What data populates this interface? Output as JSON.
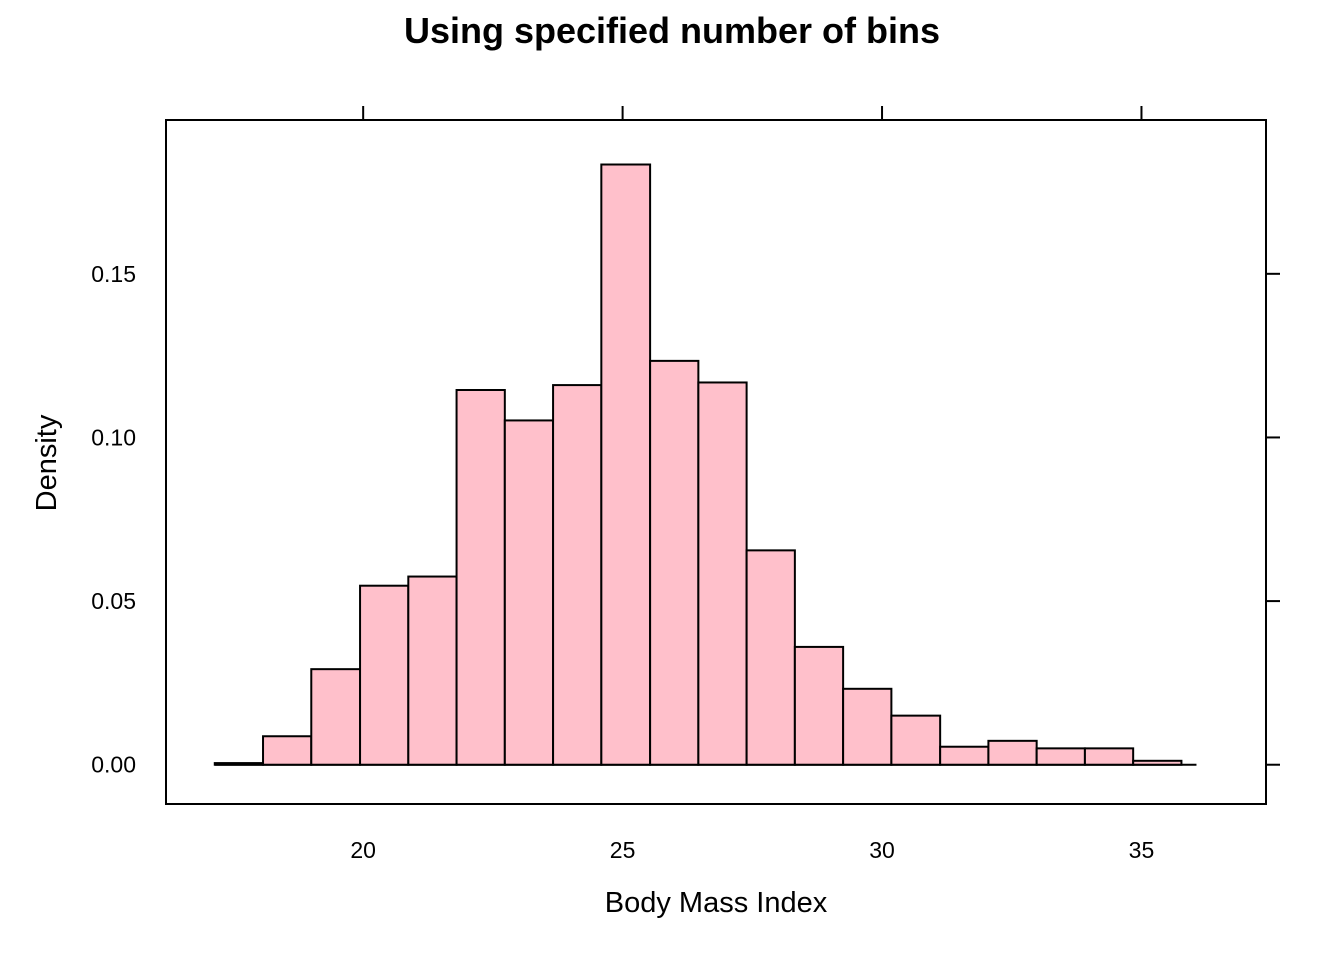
{
  "chart_data": {
    "type": "bar",
    "title": "Using specified number of bins",
    "xlabel": "Body Mass Index",
    "ylabel": "Density",
    "x_ticks": [
      20,
      25,
      30,
      35
    ],
    "y_ticks": [
      "0.00",
      "0.05",
      "0.10",
      "0.15"
    ],
    "x_range": [
      16.2,
      37.4
    ],
    "y_range": [
      -0.012,
      0.197
    ],
    "bar_color": "#FFC0CB",
    "baseline": [
      17.14,
      36.06
    ],
    "bins": [
      {
        "x0": 17.14,
        "x1": 18.07,
        "density": 0.0005
      },
      {
        "x0": 18.07,
        "x1": 19.0,
        "density": 0.0087
      },
      {
        "x0": 19.0,
        "x1": 19.94,
        "density": 0.0292
      },
      {
        "x0": 19.94,
        "x1": 20.87,
        "density": 0.0547
      },
      {
        "x0": 20.87,
        "x1": 21.8,
        "density": 0.0575
      },
      {
        "x0": 21.8,
        "x1": 22.73,
        "density": 0.1145
      },
      {
        "x0": 22.73,
        "x1": 23.66,
        "density": 0.1052
      },
      {
        "x0": 23.66,
        "x1": 24.59,
        "density": 0.116
      },
      {
        "x0": 24.59,
        "x1": 25.53,
        "density": 0.1834
      },
      {
        "x0": 25.53,
        "x1": 26.46,
        "density": 0.1234
      },
      {
        "x0": 26.46,
        "x1": 27.39,
        "density": 0.1168
      },
      {
        "x0": 27.39,
        "x1": 28.32,
        "density": 0.0655
      },
      {
        "x0": 28.32,
        "x1": 29.25,
        "density": 0.036
      },
      {
        "x0": 29.25,
        "x1": 30.18,
        "density": 0.0232
      },
      {
        "x0": 30.18,
        "x1": 31.12,
        "density": 0.015
      },
      {
        "x0": 31.12,
        "x1": 32.05,
        "density": 0.0055
      },
      {
        "x0": 32.05,
        "x1": 32.98,
        "density": 0.0073
      },
      {
        "x0": 32.98,
        "x1": 33.91,
        "density": 0.005
      },
      {
        "x0": 33.91,
        "x1": 34.84,
        "density": 0.005
      },
      {
        "x0": 34.84,
        "x1": 35.77,
        "density": 0.0012
      }
    ]
  }
}
